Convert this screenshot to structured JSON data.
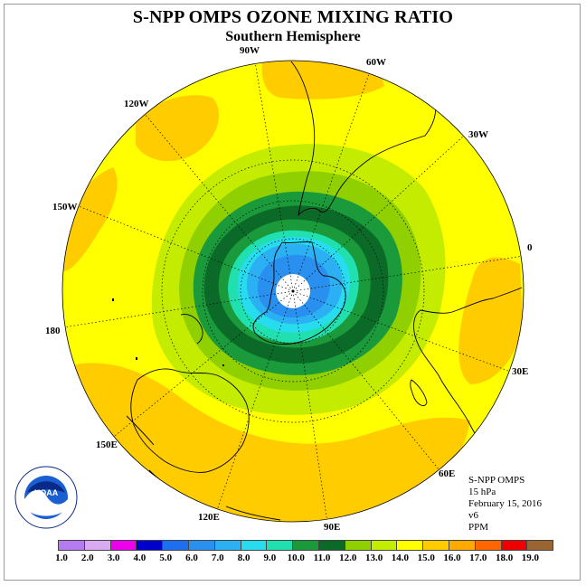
{
  "title": "S-NPP OMPS OZONE MIXING RATIO",
  "subtitle": "Southern Hemisphere",
  "longitude_labels": {
    "lon_90w": "90W",
    "lon_60w": "60W",
    "lon_30w": "30W",
    "lon_0": "0",
    "lon_30e": "30E",
    "lon_60e": "60E",
    "lon_90e": "90E",
    "lon_120e": "120E",
    "lon_150e": "150E",
    "lon_180": "180",
    "lon_150w": "150W",
    "lon_120w": "120W"
  },
  "info": {
    "instrument": "S-NPP OMPS",
    "pressure": "15 hPa",
    "date": "February 15, 2016",
    "version": "v6",
    "units": "PPM"
  },
  "colorbar": {
    "labels": [
      "1.0",
      "2.0",
      "3.0",
      "4.0",
      "5.0",
      "6.0",
      "7.0",
      "8.0",
      "9.0",
      "10.0",
      "11.0",
      "12.0",
      "13.0",
      "14.0",
      "15.0",
      "16.0",
      "17.0",
      "18.0",
      "19.0"
    ],
    "colors": [
      "#b57cf2",
      "#d9aaf2",
      "#ee00ee",
      "#0000cc",
      "#1e6ef0",
      "#2a90f0",
      "#2cb0f4",
      "#28dcf0",
      "#20e0b0",
      "#1a9a3a",
      "#0c6a28",
      "#90d000",
      "#c4ec00",
      "#ffff00",
      "#ffcc00",
      "#ffaa00",
      "#ff6600",
      "#ee0000",
      "#996633"
    ]
  },
  "map_colors": {
    "background": "#ffff00",
    "orange": "#ffcc00",
    "light_green": "#c4ec00",
    "mid_green": "#90d000",
    "green": "#1a9a3a",
    "dark_green": "#0c6a28",
    "aqua": "#20e0b0",
    "cyan": "#28dcf0",
    "light_blue": "#2cb0f4",
    "blue": "#2a90f0"
  },
  "logo": {
    "text": "NOAA"
  }
}
